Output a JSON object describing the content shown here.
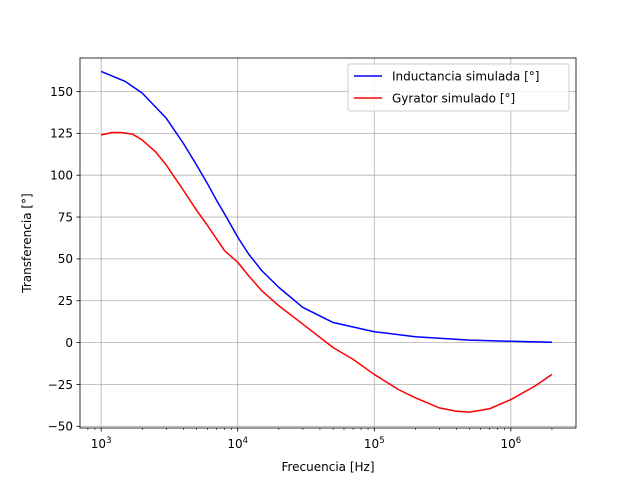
{
  "chart_data": {
    "type": "line",
    "title": "",
    "xlabel": "Frecuencia [Hz]",
    "ylabel": "Transferencia [°]",
    "xscale": "log",
    "xlim": [
      700,
      3000000
    ],
    "ylim": [
      -51,
      170
    ],
    "grid": true,
    "legend_position": "upper right",
    "x_ticks": [
      {
        "value": 1000,
        "base": "10",
        "exp": "3"
      },
      {
        "value": 10000,
        "base": "10",
        "exp": "4"
      },
      {
        "value": 100000,
        "base": "10",
        "exp": "5"
      },
      {
        "value": 1000000,
        "base": "10",
        "exp": "6"
      }
    ],
    "y_ticks": [
      -50,
      -25,
      0,
      25,
      50,
      75,
      100,
      125,
      150
    ],
    "series": [
      {
        "name": "Inductancia simulada [°]",
        "color": "#0000ff",
        "x": [
          1000,
          1500,
          2000,
          3000,
          4000,
          5000,
          6000,
          7000,
          8000,
          10000,
          12000,
          15000,
          20000,
          30000,
          50000,
          100000,
          200000,
          500000,
          1000000,
          2000000
        ],
        "y": [
          162,
          156,
          149,
          134,
          119,
          106,
          95,
          85,
          77,
          63,
          53,
          43,
          33,
          21,
          12,
          6.5,
          3.5,
          1.5,
          0.8,
          0.2
        ]
      },
      {
        "name": "Gyrator simulado [°]",
        "color": "#ff0000",
        "x": [
          1000,
          1200,
          1400,
          1700,
          2000,
          2500,
          3000,
          4000,
          5000,
          6000,
          7000,
          8000,
          10000,
          12000,
          15000,
          20000,
          30000,
          50000,
          70000,
          100000,
          150000,
          200000,
          300000,
          400000,
          500000,
          700000,
          1000000,
          1500000,
          2000000
        ],
        "y": [
          124,
          125.5,
          125.5,
          124.5,
          121,
          114,
          106,
          91,
          79,
          70,
          62,
          55,
          48,
          40,
          31,
          22,
          11,
          -3,
          -10,
          -19,
          -28,
          -33,
          -39,
          -41,
          -41.5,
          -39.5,
          -34,
          -26,
          -19
        ]
      }
    ]
  }
}
